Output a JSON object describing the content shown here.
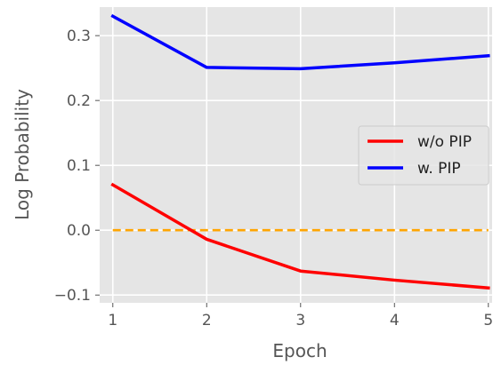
{
  "chart_data": {
    "type": "line",
    "title": "",
    "xlabel": "Epoch",
    "ylabel": "Log Probability",
    "x": [
      1,
      2,
      3,
      4,
      5
    ],
    "xlim": [
      0.86,
      5.04
    ],
    "ylim": [
      -0.112,
      0.344
    ],
    "xticks": [
      1,
      2,
      3,
      4,
      5
    ],
    "yticks": [
      -0.1,
      0.0,
      0.1,
      0.2,
      0.3
    ],
    "ytick_labels": [
      "−0.1",
      "0.0",
      "0.1",
      "0.2",
      "0.3"
    ],
    "grid": true,
    "background": "#e5e5e5",
    "legend_position": "right",
    "series": [
      {
        "name": "w/o PIP",
        "color": "#ff0000",
        "values": [
          0.07,
          -0.014,
          -0.063,
          -0.077,
          -0.089
        ]
      },
      {
        "name": "w. PIP",
        "color": "#0000ff",
        "values": [
          0.33,
          0.251,
          0.249,
          0.258,
          0.269
        ]
      }
    ],
    "reference_line": {
      "y": 0.0,
      "color": "#ffa500",
      "style": "dashed"
    }
  }
}
